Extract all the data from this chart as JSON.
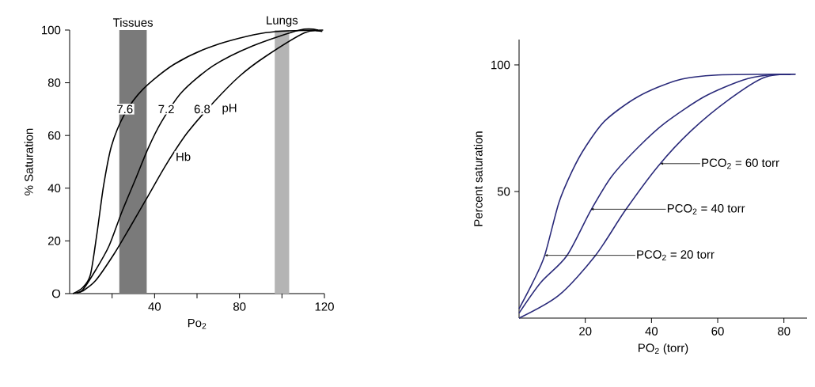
{
  "chart_data": [
    {
      "type": "line",
      "xlabel": "Po$_{2}$",
      "ylabel": "% Saturation",
      "xlim": [
        0,
        120
      ],
      "ylim": [
        0,
        100
      ],
      "xticks": [
        {
          "value": 20,
          "label": null
        },
        40,
        {
          "value": 60,
          "label": null
        },
        80,
        {
          "value": 100,
          "label": null
        },
        120
      ],
      "yticks": [
        {
          "value": 0,
          "label": "O"
        },
        20,
        40,
        60,
        80,
        100
      ],
      "bands": [
        {
          "axis": "x",
          "from": 23.4,
          "to": 36.3,
          "label": "Tissues",
          "color": "#7a7a7a"
        },
        {
          "axis": "x",
          "from": 96.6,
          "to": 103.4,
          "label": "Lungs",
          "color": "#b4b4b4"
        }
      ],
      "annotations": [
        {
          "text": "7.6",
          "x": 26,
          "y": 70
        },
        {
          "text": "7.2",
          "x": 45.5,
          "y": 70
        },
        {
          "text": "6.8",
          "x": 62.4,
          "y": 70
        },
        {
          "text": "pH",
          "x": 75.3,
          "y": 70
        },
        {
          "text": "Hb",
          "x": 53.5,
          "y": 52
        }
      ],
      "series": [
        {
          "color": "#000000",
          "x": [
            1.6,
            6.2,
            9.8,
            12.9,
            16,
            19.7,
            25.8,
            34.5,
            49.2,
            67.7,
            92.3,
            119.4
          ],
          "values": [
            0,
            2.3,
            7.2,
            23,
            41,
            56,
            68,
            77.5,
            87,
            94,
            99,
            100
          ]
        },
        {
          "color": "#000000",
          "x": [
            2.5,
            6.2,
            12.3,
            18.5,
            24.6,
            30.8,
            36.9,
            43.1,
            52.9,
            67.7,
            86.2,
            108.3,
            117
          ],
          "values": [
            0.3,
            1.5,
            9,
            18,
            31,
            43,
            55,
            65,
            76.5,
            86.5,
            94,
            100,
            100
          ]
        },
        {
          "color": "#000000",
          "x": [
            3.5,
            6.2,
            12.3,
            20.9,
            28.3,
            36.9,
            45.5,
            55.4,
            67.7,
            80,
            92.3,
            110.8,
            119
          ],
          "values": [
            0.3,
            1,
            5,
            15,
            25,
            37,
            49,
            61,
            72.5,
            82.5,
            90,
            99,
            99.5
          ]
        }
      ]
    },
    {
      "type": "line",
      "xlabel": "PO$_{2}$ (torr)",
      "ylabel": "Percent saturation",
      "xlim": [
        0,
        87
      ],
      "ylim": [
        0,
        110
      ],
      "xticks": [
        20,
        40,
        60,
        80
      ],
      "yticks": [
        50,
        100
      ],
      "annotations": [
        {
          "text": "PCO$_{2}$ = 60 torr",
          "x": 42.6,
          "y": 61
        },
        {
          "text": "PCO$_{2}$ = 40 torr",
          "x": 21.6,
          "y": 43
        },
        {
          "text": "PCO$_{2}$ = 20 torr",
          "x": 7.7,
          "y": 24.8
        }
      ],
      "series": [
        {
          "color": "#2a2a7a",
          "x": [
            0,
            4.1,
            7.7,
            12,
            16,
            20,
            26,
            36,
            48,
            60,
            83.5
          ],
          "values": [
            3.7,
            14,
            24.6,
            45.5,
            58,
            67.5,
            78,
            87.5,
            94,
            96,
            96.3
          ]
        },
        {
          "color": "#2a2a7a",
          "x": [
            0,
            6.5,
            14.4,
            21.6,
            28,
            36,
            44,
            56,
            67.6,
            75.5,
            82
          ],
          "values": [
            2,
            14,
            24.6,
            42.4,
            56,
            67.5,
            77,
            87.5,
            94,
            96,
            96.2
          ]
        },
        {
          "color": "#2a2a7a",
          "x": [
            0,
            12,
            23,
            32,
            42,
            52,
            63.6,
            74,
            83.5
          ],
          "values": [
            0,
            9,
            24.6,
            42.4,
            60,
            74,
            86.5,
            95,
            96.3
          ]
        }
      ]
    }
  ]
}
